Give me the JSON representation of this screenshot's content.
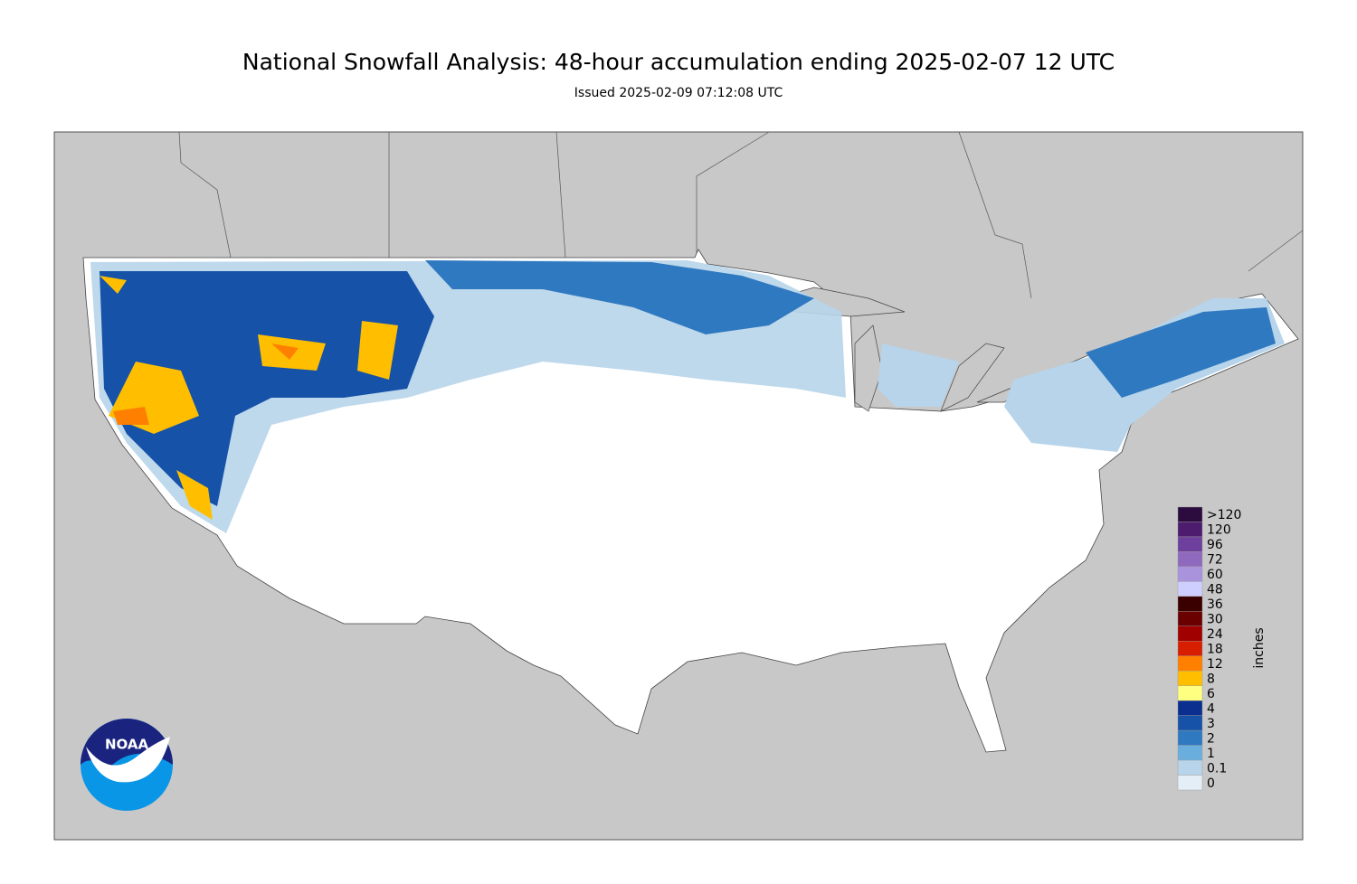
{
  "header": {
    "title": "National Snowfall Analysis: 48-hour accumulation ending 2025-02-07 12 UTC",
    "subtitle": "Issued 2025-02-09 07:12:08 UTC"
  },
  "logo": {
    "text": "NOAA"
  },
  "legend": {
    "units": "inches",
    "items": [
      {
        "label": ">120",
        "color": "#2c0c3f"
      },
      {
        "label": "120",
        "color": "#4e1c6e"
      },
      {
        "label": "96",
        "color": "#6e3f9c"
      },
      {
        "label": "72",
        "color": "#8f69bd"
      },
      {
        "label": "60",
        "color": "#a993dd"
      },
      {
        "label": "48",
        "color": "#cfcfff"
      },
      {
        "label": "36",
        "color": "#3a0000"
      },
      {
        "label": "30",
        "color": "#6b0000"
      },
      {
        "label": "24",
        "color": "#a00000"
      },
      {
        "label": "18",
        "color": "#d81e00"
      },
      {
        "label": "12",
        "color": "#ff8000"
      },
      {
        "label": "8",
        "color": "#ffbf00"
      },
      {
        "label": "6",
        "color": "#ffff80"
      },
      {
        "label": "4",
        "color": "#0b2f8f"
      },
      {
        "label": "3",
        "color": "#1552a8"
      },
      {
        "label": "2",
        "color": "#2f79c0"
      },
      {
        "label": "1",
        "color": "#6aaede"
      },
      {
        "label": "0.1",
        "color": "#b7d4ea"
      },
      {
        "label": "0",
        "color": "#e4eef7"
      }
    ]
  }
}
